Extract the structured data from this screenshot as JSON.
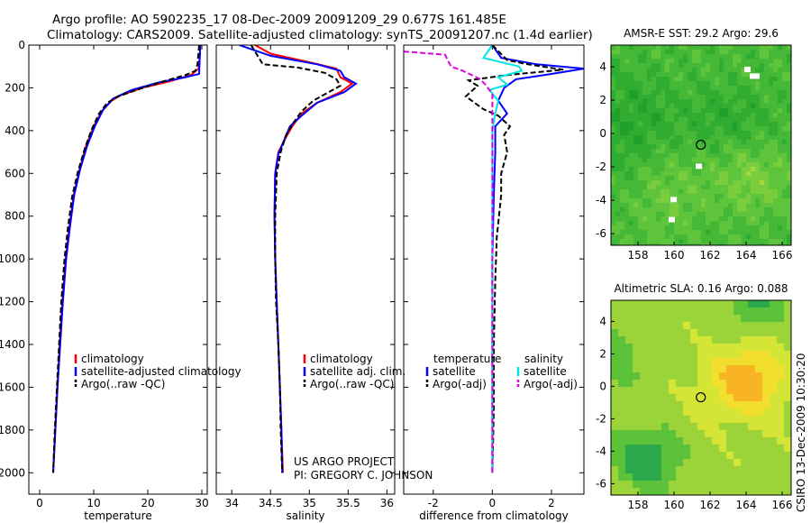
{
  "header": {
    "line1": "Argo profile: AO 5902235_17 08-Dec-2009 20091209_29 0.677S 161.485E",
    "line2": "Climatology: CARS2009. Satellite-adjusted climatology: synTS_20091207.nc (1.4d earlier)"
  },
  "colors": {
    "climatology": "#ff0000",
    "satellite": "#0000ff",
    "argo": "#000000",
    "salinity_sat": "#00e5e5",
    "salinity_argo": "#e000e0"
  },
  "legends": {
    "temp": [
      "climatology",
      "satellite-adjusted climatology",
      "Argo(..raw -QC)"
    ],
    "sal": [
      "climatology",
      "satellite adj. clim.",
      "Argo(..raw -QC)"
    ],
    "diff": {
      "temp_header": "temperature",
      "sal_header": "salinity",
      "temp_items": [
        "satellite",
        "Argo(-adj)"
      ],
      "sal_items": [
        "satellite",
        "Argo(-adj)"
      ]
    }
  },
  "credit": {
    "line1": "US ARGO PROJECT",
    "line2": "PI: GREGORY C. JOHNSON"
  },
  "side_label": "CSIRO 13-Dec-2009 10:30:20",
  "chart_data": [
    {
      "id": "temp",
      "type": "line",
      "xlabel": "temperature",
      "ylabel": "",
      "xlim": [
        -2,
        31
      ],
      "ylim": [
        2100,
        0
      ],
      "xticks": [
        0,
        10,
        20,
        30
      ],
      "yticks": [
        0,
        200,
        400,
        600,
        800,
        1000,
        1200,
        1400,
        1600,
        1800,
        2000
      ],
      "series": [
        {
          "name": "climatology",
          "color": "#ff0000",
          "dash": "",
          "points": [
            [
              29.7,
              0
            ],
            [
              29.6,
              60
            ],
            [
              29.4,
              110
            ],
            [
              28,
              140
            ],
            [
              24,
              170
            ],
            [
              19,
              200
            ],
            [
              15,
              235
            ],
            [
              13.3,
              260
            ],
            [
              11.5,
              310
            ],
            [
              10,
              380
            ],
            [
              8.6,
              470
            ],
            [
              7.4,
              580
            ],
            [
              6.3,
              700
            ],
            [
              5.5,
              850
            ],
            [
              4.8,
              1000
            ],
            [
              4.2,
              1200
            ],
            [
              3.7,
              1400
            ],
            [
              3.3,
              1600
            ],
            [
              2.9,
              1800
            ],
            [
              2.5,
              2000
            ]
          ]
        },
        {
          "name": "satellite-adjusted climatology",
          "color": "#0000ff",
          "dash": "",
          "points": [
            [
              29.7,
              0
            ],
            [
              29.6,
              70
            ],
            [
              29.5,
              135
            ],
            [
              27,
              150
            ],
            [
              22,
              175
            ],
            [
              17,
              210
            ],
            [
              13.6,
              250
            ],
            [
              11.8,
              300
            ],
            [
              10.2,
              380
            ],
            [
              8.8,
              470
            ],
            [
              7.5,
              580
            ],
            [
              6.4,
              700
            ],
            [
              5.6,
              850
            ],
            [
              4.9,
              1000
            ],
            [
              4.3,
              1200
            ],
            [
              3.8,
              1400
            ],
            [
              3.3,
              1600
            ],
            [
              2.9,
              1800
            ],
            [
              2.5,
              2000
            ]
          ]
        },
        {
          "name": "Argo(..raw -QC)",
          "color": "#000000",
          "dash": "6,3",
          "points": [
            [
              29.5,
              0
            ],
            [
              29.2,
              90
            ],
            [
              28.8,
              120
            ],
            [
              27,
              140
            ],
            [
              23.5,
              165
            ],
            [
              18.5,
              205
            ],
            [
              14.5,
              240
            ],
            [
              12.5,
              270
            ],
            [
              11,
              320
            ],
            [
              9.7,
              390
            ],
            [
              8.4,
              480
            ],
            [
              7.1,
              590
            ],
            [
              6,
              710
            ],
            [
              5.2,
              860
            ],
            [
              4.6,
              1000
            ],
            [
              4,
              1200
            ],
            [
              3.6,
              1400
            ],
            [
              3.2,
              1600
            ],
            [
              2.8,
              1800
            ],
            [
              2.5,
              2000
            ]
          ]
        }
      ]
    },
    {
      "id": "sal",
      "type": "line",
      "xlabel": "salinity",
      "ylabel": "",
      "xlim": [
        33.8,
        36.1
      ],
      "ylim": [
        2100,
        0
      ],
      "xticks": [
        34,
        34.5,
        35,
        35.5,
        36
      ],
      "series": [
        {
          "name": "climatology",
          "color": "#ff0000",
          "dash": "",
          "points": [
            [
              34.3,
              0
            ],
            [
              34.5,
              40
            ],
            [
              35,
              80
            ],
            [
              35.35,
              110
            ],
            [
              35.4,
              150
            ],
            [
              35.55,
              180
            ],
            [
              35.4,
              220
            ],
            [
              35.1,
              270
            ],
            [
              34.9,
              320
            ],
            [
              34.78,
              380
            ],
            [
              34.7,
              430
            ],
            [
              34.6,
              500
            ],
            [
              34.56,
              600
            ],
            [
              34.55,
              800
            ],
            [
              34.56,
              1000
            ],
            [
              34.58,
              1200
            ],
            [
              34.6,
              1400
            ],
            [
              34.62,
              1600
            ],
            [
              34.64,
              1800
            ],
            [
              34.66,
              2000
            ]
          ]
        },
        {
          "name": "satellite adj. clim.",
          "color": "#0000ff",
          "dash": "",
          "points": [
            [
              34.1,
              0
            ],
            [
              34.5,
              50
            ],
            [
              35.1,
              90
            ],
            [
              35.4,
              120
            ],
            [
              35.45,
              150
            ],
            [
              35.6,
              180
            ],
            [
              35.45,
              220
            ],
            [
              35.1,
              270
            ],
            [
              34.9,
              330
            ],
            [
              34.75,
              380
            ],
            [
              34.68,
              440
            ],
            [
              34.6,
              510
            ],
            [
              34.56,
              600
            ],
            [
              34.55,
              800
            ],
            [
              34.56,
              1000
            ],
            [
              34.58,
              1200
            ],
            [
              34.6,
              1400
            ],
            [
              34.62,
              1600
            ],
            [
              34.64,
              1800
            ],
            [
              34.65,
              2000
            ]
          ]
        },
        {
          "name": "Argo(..raw -QC)",
          "color": "#000000",
          "dash": "6,3",
          "points": [
            [
              34.25,
              0
            ],
            [
              34.35,
              60
            ],
            [
              34.4,
              90
            ],
            [
              34.85,
              105
            ],
            [
              35.2,
              130
            ],
            [
              35.35,
              160
            ],
            [
              35.4,
              190
            ],
            [
              35.2,
              230
            ],
            [
              35.05,
              260
            ],
            [
              34.9,
              310
            ],
            [
              34.8,
              360
            ],
            [
              34.7,
              420
            ],
            [
              34.63,
              500
            ],
            [
              34.58,
              600
            ],
            [
              34.56,
              800
            ],
            [
              34.56,
              1000
            ],
            [
              34.57,
              1200
            ],
            [
              34.6,
              1400
            ],
            [
              34.62,
              1600
            ],
            [
              34.63,
              1800
            ],
            [
              34.65,
              2000
            ]
          ]
        }
      ]
    },
    {
      "id": "diff",
      "type": "line",
      "xlabel": "difference from climatology",
      "ylabel": "",
      "xlim": [
        -3,
        3.1
      ],
      "ylim": [
        2100,
        0
      ],
      "xticks": [
        -2,
        0,
        2
      ],
      "series": [
        {
          "name": "temperature satellite",
          "color": "#0000ff",
          "dash": "",
          "points": [
            [
              0,
              0
            ],
            [
              0.3,
              60
            ],
            [
              1.5,
              90
            ],
            [
              3.1,
              110
            ],
            [
              2,
              135
            ],
            [
              0.8,
              160
            ],
            [
              0.4,
              200
            ],
            [
              0.2,
              260
            ],
            [
              0.5,
              320
            ],
            [
              0.1,
              380
            ],
            [
              0.1,
              500
            ],
            [
              0.05,
              700
            ],
            [
              0,
              1000
            ],
            [
              0,
              1400
            ],
            [
              0,
              1700
            ],
            [
              0,
              2000
            ]
          ]
        },
        {
          "name": "temperature Argo(-adj)",
          "color": "#000000",
          "dash": "6,3",
          "points": [
            [
              0,
              0
            ],
            [
              0.5,
              70
            ],
            [
              1.2,
              90
            ],
            [
              2.4,
              115
            ],
            [
              0.5,
              140
            ],
            [
              -0.8,
              165
            ],
            [
              -0.5,
              190
            ],
            [
              -0.9,
              240
            ],
            [
              -0.3,
              300
            ],
            [
              0.2,
              330
            ],
            [
              0.6,
              380
            ],
            [
              0.4,
              420
            ],
            [
              0.5,
              500
            ],
            [
              0.3,
              600
            ],
            [
              0.3,
              700
            ],
            [
              0.15,
              900
            ],
            [
              0.1,
              1100
            ],
            [
              0.05,
              1400
            ],
            [
              0.05,
              1700
            ],
            [
              0,
              2000
            ]
          ]
        },
        {
          "name": "salinity satellite",
          "color": "#00e5e5",
          "dash": "",
          "points": [
            [
              0,
              0
            ],
            [
              -0.3,
              60
            ],
            [
              0.9,
              100
            ],
            [
              1,
              120
            ],
            [
              0.2,
              150
            ],
            [
              0.5,
              185
            ],
            [
              -0.1,
              210
            ],
            [
              0.2,
              260
            ],
            [
              0.1,
              320
            ],
            [
              0,
              400
            ],
            [
              0,
              600
            ],
            [
              0,
              800
            ],
            [
              0,
              1100
            ],
            [
              0,
              1400
            ],
            [
              0,
              1700
            ],
            [
              0,
              2000
            ]
          ]
        },
        {
          "name": "salinity Argo(-adj)",
          "color": "#e000e0",
          "dash": "6,3",
          "points": [
            [
              -3,
              30
            ],
            [
              -1.6,
              45
            ],
            [
              -1.4,
              100
            ],
            [
              -1,
              120
            ],
            [
              -0.4,
              160
            ],
            [
              -0.2,
              190
            ],
            [
              0,
              230
            ],
            [
              0,
              300
            ],
            [
              0,
              500
            ],
            [
              0,
              1000
            ],
            [
              0,
              2000
            ]
          ]
        }
      ]
    }
  ],
  "maps": [
    {
      "id": "sst",
      "title": "AMSR-E SST: 29.2 Argo: 29.6",
      "xlim": [
        156.5,
        166.5
      ],
      "ylim": [
        -6.7,
        5.3
      ],
      "xticks": [
        158,
        160,
        162,
        164,
        166
      ],
      "yticks": [
        4,
        2,
        0,
        -2,
        -4,
        -6
      ],
      "argo_lon": 161.485,
      "argo_lat": -0.677,
      "palette": [
        "#1fa02a",
        "#30ac30",
        "#45b838",
        "#5ec43c",
        "#7acd3c",
        "#a3d93a"
      ]
    },
    {
      "id": "sla",
      "title": "Altimetric SLA: 0.16 Argo: 0.088",
      "xlim": [
        156.5,
        166.5
      ],
      "ylim": [
        -6.7,
        5.3
      ],
      "xticks": [
        158,
        160,
        162,
        164,
        166
      ],
      "yticks": [
        4,
        2,
        0,
        -2,
        -4,
        -6
      ],
      "argo_lon": 161.485,
      "argo_lat": -0.677,
      "palette": [
        "#2aa84a",
        "#5cc23a",
        "#9ad438",
        "#d5e535",
        "#f2de2c",
        "#f8b425"
      ]
    }
  ]
}
